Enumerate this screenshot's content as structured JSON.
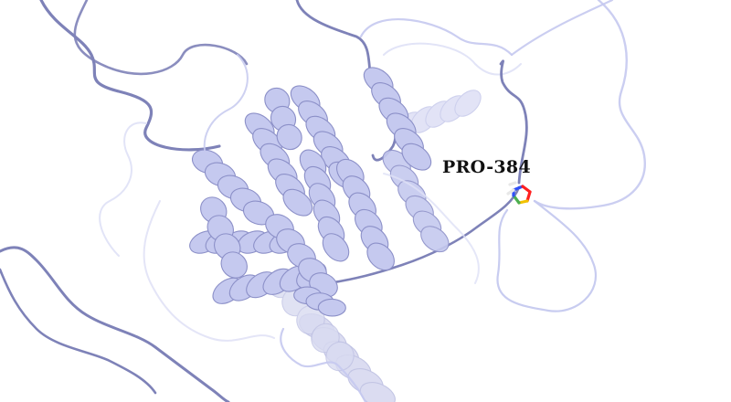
{
  "viewer": {
    "residue_label": "PRO-384"
  },
  "colors": {
    "background": "#ffffff",
    "cartoon": "#c5c9ef",
    "cartoon_light": "#dfe1f6",
    "cartoon_dark": "#8c90c8",
    "coil": "#7e82b8",
    "stick_carbon": "#4caf50",
    "stick_nitrogen": "#3050f8",
    "stick_oxygen": "#ff2020",
    "stick_hydrogen": "#e8e8e8",
    "stick_ring": "#f2c200"
  }
}
